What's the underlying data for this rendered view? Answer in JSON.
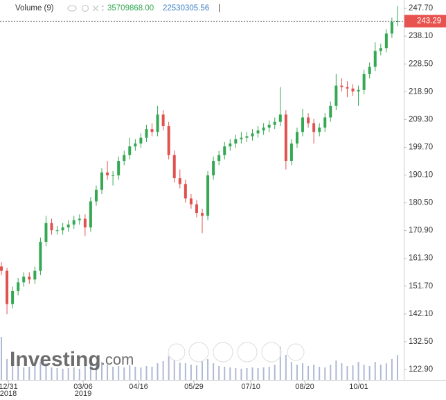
{
  "chart_data": {
    "type": "candlestick",
    "volume_legend": {
      "name": "Volume (9)",
      "delimiter": ":",
      "volume": "35709868.00",
      "average": "22530305.56",
      "cursor": "|"
    },
    "watermark": {
      "brand": "Investing",
      "suffix": ".com"
    },
    "up_color": "#35a853",
    "down_color": "#e0524f",
    "volume_color": "#9aa7c9",
    "last_price": {
      "value": 243.29,
      "label": "243.29"
    },
    "last_price_color": "#e8534f",
    "grid": false,
    "ylim": [
      119.3,
      250.6
    ],
    "yticks": [
      {
        "value": 122.9,
        "label": "122.90"
      },
      {
        "value": 132.5,
        "label": "132.50"
      },
      {
        "value": 142.1,
        "label": "142.10"
      },
      {
        "value": 151.7,
        "label": "151.70"
      },
      {
        "value": 161.3,
        "label": "161.30"
      },
      {
        "value": 170.9,
        "label": "170.90"
      },
      {
        "value": 180.5,
        "label": "180.50"
      },
      {
        "value": 190.1,
        "label": "190.10"
      },
      {
        "value": 199.7,
        "label": "199.70"
      },
      {
        "value": 209.3,
        "label": "209.30"
      },
      {
        "value": 218.9,
        "label": "218.90"
      },
      {
        "value": 228.5,
        "label": "228.50"
      },
      {
        "value": 238.1,
        "label": "238.10"
      },
      {
        "value": 247.7,
        "label": "247.70"
      }
    ],
    "xlim": [
      -0.25,
      71.75
    ],
    "xticks": [
      {
        "value": 1.24,
        "label": "12/31",
        "year": "2018"
      },
      {
        "value": 14.65,
        "label": "03/06",
        "year": "2019"
      },
      {
        "value": 24.58,
        "label": "04/16"
      },
      {
        "value": 34.5,
        "label": "05/29"
      },
      {
        "value": 44.7,
        "label": "07/10"
      },
      {
        "value": 54.37,
        "label": "08/20"
      },
      {
        "value": 64.05,
        "label": "10/01"
      }
    ],
    "vlim": [
      0,
      80000000
    ],
    "ohlc": [
      [
        158.5,
        160,
        155.5,
        157
      ],
      [
        157,
        158,
        142,
        145.5
      ],
      [
        145.5,
        151.5,
        144,
        150
      ],
      [
        150,
        154.5,
        148.5,
        153
      ],
      [
        153,
        156.5,
        151.5,
        155
      ],
      [
        155,
        156.5,
        152.5,
        154
      ],
      [
        154,
        158.5,
        152.5,
        157
      ],
      [
        157,
        168.5,
        155.5,
        167
      ],
      [
        167,
        176,
        165.5,
        173.5
      ],
      [
        173.5,
        175,
        169.5,
        171
      ],
      [
        171,
        172.5,
        169.5,
        171
      ],
      [
        171,
        173.5,
        169.5,
        172
      ],
      [
        172,
        174.5,
        170.5,
        173
      ],
      [
        173,
        176,
        171.5,
        174.5
      ],
      [
        174.5,
        176.5,
        173,
        175
      ],
      [
        175,
        176.5,
        169,
        172
      ],
      [
        172,
        182.5,
        170.5,
        181
      ],
      [
        181,
        186.5,
        179.5,
        185
      ],
      [
        185,
        192.5,
        183.5,
        191
      ],
      [
        191,
        195,
        188.5,
        190
      ],
      [
        190,
        191.5,
        186.5,
        190
      ],
      [
        190,
        196.5,
        188.5,
        195
      ],
      [
        195,
        198.5,
        193.5,
        197
      ],
      [
        197,
        203,
        195.5,
        200
      ],
      [
        200,
        202.5,
        198.5,
        201
      ],
      [
        201,
        204.5,
        199.5,
        203
      ],
      [
        203,
        207.5,
        201.5,
        206
      ],
      [
        206,
        208,
        203.5,
        205
      ],
      [
        205,
        214,
        203.5,
        211
      ],
      [
        211,
        212.5,
        205.5,
        207
      ],
      [
        207,
        208.5,
        195.5,
        197
      ],
      [
        197,
        198.5,
        187.5,
        189
      ],
      [
        189,
        192,
        185.5,
        187
      ],
      [
        187,
        188.5,
        180.5,
        182
      ],
      [
        182,
        183.5,
        178.5,
        180
      ],
      [
        180,
        181.5,
        175.5,
        177
      ],
      [
        177,
        178.5,
        170,
        176
      ],
      [
        176,
        191.5,
        174.5,
        190
      ],
      [
        190,
        196.5,
        188.5,
        195
      ],
      [
        195,
        198.5,
        193.5,
        197
      ],
      [
        197,
        201.5,
        195.5,
        200
      ],
      [
        200,
        202.5,
        198.5,
        201
      ],
      [
        201,
        204,
        199.5,
        202.5
      ],
      [
        202.5,
        205,
        201,
        203
      ],
      [
        203,
        205,
        201.5,
        203.5
      ],
      [
        203.5,
        206,
        202,
        204.5
      ],
      [
        204.5,
        207,
        203,
        205.5
      ],
      [
        205.5,
        208,
        204,
        206.5
      ],
      [
        206.5,
        209,
        205,
        207.5
      ],
      [
        207.5,
        210,
        206,
        208.5
      ],
      [
        208.5,
        220.5,
        207,
        211
      ],
      [
        211,
        212.5,
        192,
        195
      ],
      [
        195,
        202.5,
        193.5,
        201
      ],
      [
        201,
        206.5,
        199.5,
        205
      ],
      [
        205,
        213,
        203.5,
        210
      ],
      [
        210,
        211.5,
        206.5,
        208
      ],
      [
        208,
        209.5,
        201,
        205
      ],
      [
        205,
        208,
        203.5,
        206.5
      ],
      [
        206.5,
        211.5,
        205,
        210
      ],
      [
        210,
        215.5,
        208.5,
        214
      ],
      [
        214,
        225,
        212.5,
        221
      ],
      [
        221,
        223.5,
        219,
        220.5
      ],
      [
        220.5,
        222.5,
        217,
        220
      ],
      [
        220,
        221.5,
        217.5,
        219
      ],
      [
        219,
        221,
        214,
        219.5
      ],
      [
        219.5,
        226.5,
        218,
        225
      ],
      [
        225,
        229,
        223.5,
        227.5
      ],
      [
        227.5,
        236,
        226,
        233
      ],
      [
        233,
        235.5,
        231.5,
        234
      ],
      [
        234,
        240.5,
        232.5,
        239
      ],
      [
        239,
        244.5,
        237.5,
        243
      ],
      [
        243,
        248.5,
        241.5,
        243.29
      ]
    ],
    "volume": [
      62000000,
      30000000,
      22000000,
      20000000,
      18000000,
      19000000,
      21000000,
      26000000,
      24000000,
      18000000,
      17000000,
      16000000,
      17000000,
      18000000,
      16000000,
      22000000,
      30000000,
      24000000,
      26000000,
      22000000,
      19000000,
      20000000,
      18000000,
      21000000,
      19000000,
      18000000,
      20000000,
      19000000,
      24000000,
      27000000,
      34000000,
      28000000,
      25000000,
      24000000,
      22000000,
      21000000,
      28000000,
      30000000,
      24000000,
      20000000,
      19000000,
      18000000,
      17000000,
      16000000,
      17000000,
      18000000,
      17000000,
      18000000,
      19000000,
      22000000,
      48000000,
      36000000,
      26000000,
      22000000,
      24000000,
      20000000,
      22000000,
      19000000,
      18000000,
      22000000,
      28000000,
      24000000,
      20000000,
      21000000,
      26000000,
      22000000,
      20000000,
      26000000,
      22000000,
      24000000,
      30000000,
      35709868
    ]
  }
}
